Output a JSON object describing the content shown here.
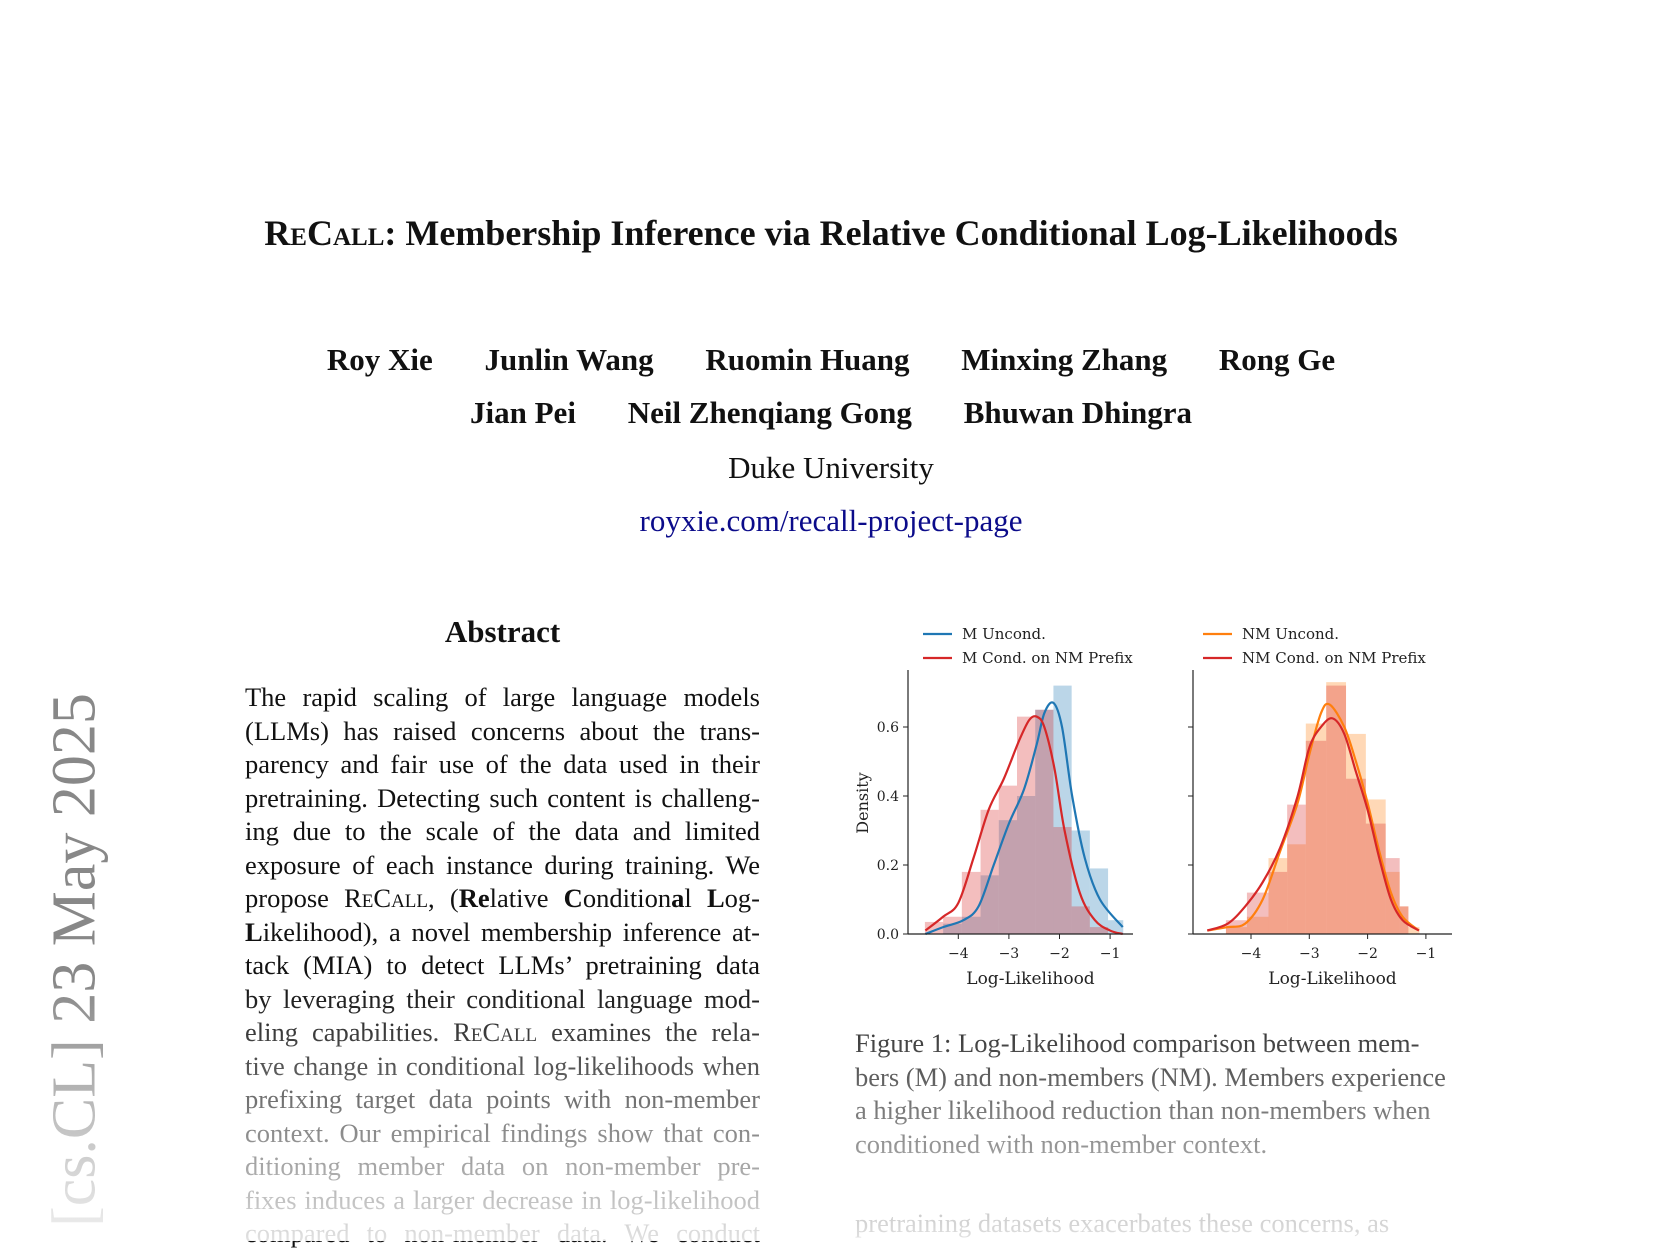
{
  "title": {
    "name_sc": "ReCall",
    "rest": ": Membership Inference via Relative Conditional Log-Likelihoods"
  },
  "authors": {
    "row1": [
      "Roy Xie",
      "Junlin Wang",
      "Ruomin Huang",
      "Minxing Zhang",
      "Rong Ge"
    ],
    "row2": [
      "Jian Pei",
      "Neil Zhenqiang Gong",
      "Bhuwan Dhingra"
    ]
  },
  "affiliation": "Duke University",
  "project_link": "royxie.com/recall-project-page",
  "arxiv_stamp": "[cs.CL]  23 May 2025",
  "abstract": {
    "heading": "Abstract",
    "lines": [
      [
        {
          "t": "The rapid scaling of large language models"
        }
      ],
      [
        {
          "t": "(LLMs) has raised concerns about the trans-"
        }
      ],
      [
        {
          "t": "parency and fair use of the data used in their"
        }
      ],
      [
        {
          "t": "pretraining. Detecting such content is challeng-"
        }
      ],
      [
        {
          "t": "ing due to the scale of the data and limited"
        }
      ],
      [
        {
          "t": "exposure of each instance during training. We"
        }
      ],
      [
        {
          "t": "propose "
        },
        {
          "t": "ReCall",
          "sc": true
        },
        {
          "t": ", ("
        },
        {
          "t": "Re",
          "b": true
        },
        {
          "t": "lative "
        },
        {
          "t": "C",
          "b": true
        },
        {
          "t": "ondition"
        },
        {
          "t": "a",
          "b": true
        },
        {
          "t": "l "
        },
        {
          "t": "L",
          "b": true
        },
        {
          "t": "og-"
        }
      ],
      [
        {
          "t": "L",
          "b": true
        },
        {
          "t": "ikelihood), a novel membership inference at-"
        }
      ],
      [
        {
          "t": "tack (MIA) to detect LLMs’ pretraining data"
        }
      ],
      [
        {
          "t": "by leveraging their conditional language mod-"
        }
      ],
      [
        {
          "t": "eling capabilities. "
        },
        {
          "t": "ReCall",
          "sc": true
        },
        {
          "t": " examines the rela-"
        }
      ],
      [
        {
          "t": "tive change in conditional log-likelihoods when"
        }
      ],
      [
        {
          "t": "prefixing target data points with non-member"
        }
      ],
      [
        {
          "t": "context. Our empirical findings show that con-"
        }
      ],
      [
        {
          "t": "ditioning member data on non-member pre-"
        }
      ],
      [
        {
          "t": "fixes induces a larger decrease in log-likelihood"
        }
      ],
      [
        {
          "t": "compared to non-member data.  We conduct"
        }
      ]
    ]
  },
  "figure_caption": {
    "lines": [
      "Figure 1:  Log-Likelihood comparison between mem-",
      "bers (M) and non-members (NM). Members experience",
      "a higher likelihood reduction than non-members when",
      "conditioned with non-member context."
    ]
  },
  "next_paragraph": "pretraining datasets exacerbates these concerns, as",
  "chart_data": [
    {
      "type": "bar+line",
      "xlabel": "Log-Likelihood",
      "ylabel": "Density",
      "xticks": [
        -4,
        -3,
        -2,
        -1
      ],
      "yticks": [
        0.0,
        0.2,
        0.4,
        0.6
      ],
      "xlim": [
        -4.8,
        -0.7
      ],
      "ylim": [
        0,
        0.75
      ],
      "legend_position": "top",
      "series": [
        {
          "name": "M Uncond.",
          "color": "#1f77b4",
          "hist": {
            "edges": [
              -4.3,
              -3.93,
              -3.56,
              -3.2,
              -2.84,
              -2.48,
              -2.12,
              -1.76,
              -1.4,
              -1.04,
              -0.74
            ],
            "density": [
              0.03,
              0.05,
              0.17,
              0.33,
              0.4,
              0.65,
              0.72,
              0.3,
              0.19,
              0.04
            ]
          },
          "kde": [
            [
              -4.65,
              0.0
            ],
            [
              -4.3,
              0.02
            ],
            [
              -3.9,
              0.04
            ],
            [
              -3.6,
              0.08
            ],
            [
              -3.3,
              0.2
            ],
            [
              -3.0,
              0.32
            ],
            [
              -2.7,
              0.42
            ],
            [
              -2.45,
              0.55
            ],
            [
              -2.3,
              0.64
            ],
            [
              -2.12,
              0.67
            ],
            [
              -1.95,
              0.6
            ],
            [
              -1.75,
              0.4
            ],
            [
              -1.5,
              0.22
            ],
            [
              -1.2,
              0.1
            ],
            [
              -0.75,
              0.02
            ]
          ]
        },
        {
          "name": "M Cond. on NM Prefix",
          "color": "#d62728",
          "hist": {
            "edges": [
              -4.66,
              -4.3,
              -3.93,
              -3.56,
              -3.2,
              -2.84,
              -2.48,
              -2.12,
              -1.76,
              -1.4,
              -1.04
            ],
            "density": [
              0.035,
              0.05,
              0.18,
              0.36,
              0.43,
              0.63,
              0.65,
              0.31,
              0.08,
              0.02
            ]
          },
          "kde": [
            [
              -4.65,
              0.01
            ],
            [
              -4.3,
              0.05
            ],
            [
              -4.0,
              0.09
            ],
            [
              -3.7,
              0.22
            ],
            [
              -3.4,
              0.36
            ],
            [
              -3.1,
              0.45
            ],
            [
              -2.8,
              0.56
            ],
            [
              -2.6,
              0.62
            ],
            [
              -2.45,
              0.63
            ],
            [
              -2.3,
              0.6
            ],
            [
              -2.1,
              0.48
            ],
            [
              -1.9,
              0.3
            ],
            [
              -1.6,
              0.12
            ],
            [
              -1.3,
              0.04
            ],
            [
              -1.0,
              0.01
            ],
            [
              -0.75,
              0.0
            ]
          ]
        }
      ]
    },
    {
      "type": "bar+line",
      "xlabel": "Log-Likelihood",
      "xticks": [
        -4,
        -3,
        -2,
        -1
      ],
      "yticks": [
        0.0,
        0.2,
        0.4,
        0.6
      ],
      "xlim": [
        -4.9,
        -0.65
      ],
      "ylim": [
        0,
        0.75
      ],
      "legend_position": "top",
      "series": [
        {
          "name": "NM Uncond.",
          "color": "#ff7f0e",
          "hist": {
            "edges": [
              -4.43,
              -4.07,
              -3.7,
              -3.38,
              -3.06,
              -2.71,
              -2.37,
              -2.03,
              -1.69,
              -1.45,
              -1.3,
              -1.11
            ],
            "density": [
              0.02,
              0.05,
              0.22,
              0.26,
              0.61,
              0.73,
              0.58,
              0.39,
              0.18,
              0.08,
              0.02
            ]
          },
          "kde": [
            [
              -4.75,
              0.01
            ],
            [
              -4.4,
              0.02
            ],
            [
              -4.1,
              0.03
            ],
            [
              -3.8,
              0.1
            ],
            [
              -3.5,
              0.24
            ],
            [
              -3.2,
              0.38
            ],
            [
              -3.0,
              0.52
            ],
            [
              -2.8,
              0.64
            ],
            [
              -2.65,
              0.665
            ],
            [
              -2.4,
              0.6
            ],
            [
              -2.2,
              0.5
            ],
            [
              -2.0,
              0.38
            ],
            [
              -1.8,
              0.24
            ],
            [
              -1.6,
              0.12
            ],
            [
              -1.4,
              0.05
            ],
            [
              -1.12,
              0.01
            ]
          ]
        },
        {
          "name": "NM Cond. on NM Prefix",
          "color": "#d62728",
          "hist": {
            "edges": [
              -4.43,
              -4.07,
              -3.7,
              -3.38,
              -3.06,
              -2.71,
              -2.37,
              -2.03,
              -1.69,
              -1.45,
              -1.3
            ],
            "density": [
              0.04,
              0.12,
              0.18,
              0.375,
              0.56,
              0.72,
              0.45,
              0.32,
              0.22,
              0.08
            ]
          },
          "kde": [
            [
              -4.75,
              0.01
            ],
            [
              -4.4,
              0.03
            ],
            [
              -4.1,
              0.08
            ],
            [
              -3.8,
              0.15
            ],
            [
              -3.5,
              0.25
            ],
            [
              -3.2,
              0.4
            ],
            [
              -3.0,
              0.54
            ],
            [
              -2.8,
              0.6
            ],
            [
              -2.6,
              0.625
            ],
            [
              -2.4,
              0.58
            ],
            [
              -2.2,
              0.47
            ],
            [
              -2.0,
              0.36
            ],
            [
              -1.8,
              0.22
            ],
            [
              -1.6,
              0.1
            ],
            [
              -1.4,
              0.04
            ],
            [
              -1.12,
              0.01
            ]
          ]
        }
      ]
    }
  ]
}
